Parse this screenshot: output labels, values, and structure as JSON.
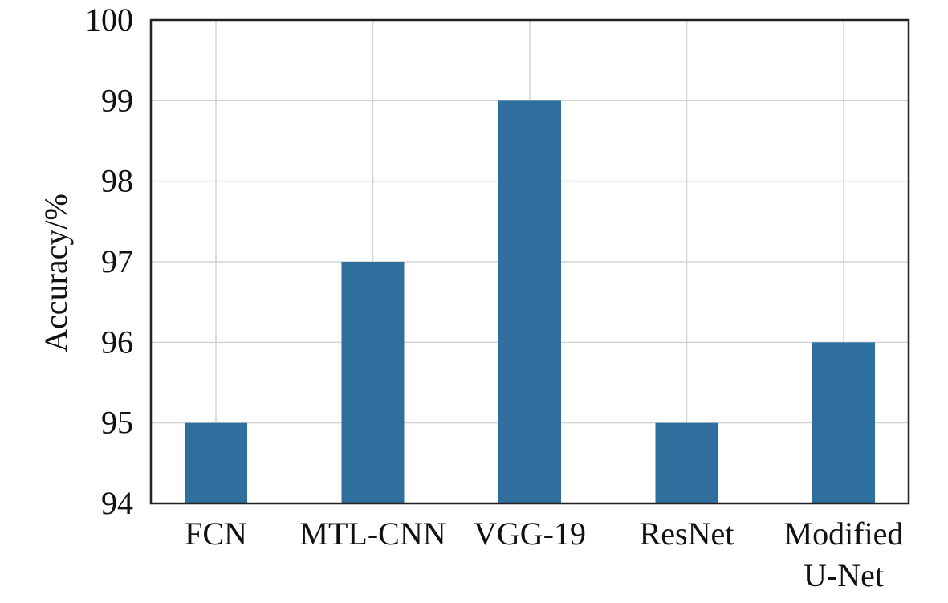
{
  "chart_data": {
    "type": "bar",
    "title": "",
    "xlabel": "",
    "ylabel": "Accuracy/%",
    "categories": [
      [
        "FCN"
      ],
      [
        "MTL-CNN"
      ],
      [
        "VGG-19"
      ],
      [
        "ResNet"
      ],
      [
        "Modified",
        "U-Net"
      ]
    ],
    "values": [
      95,
      97,
      99,
      95,
      96
    ],
    "ylim": [
      94,
      100
    ],
    "yticks": [
      "94",
      "95",
      "96",
      "97",
      "98",
      "99",
      "100"
    ],
    "grid": true,
    "legend": "none"
  },
  "colors": {
    "bar": "#2e6f9e",
    "grid": "#d4d4d4",
    "axis": "#222222"
  }
}
